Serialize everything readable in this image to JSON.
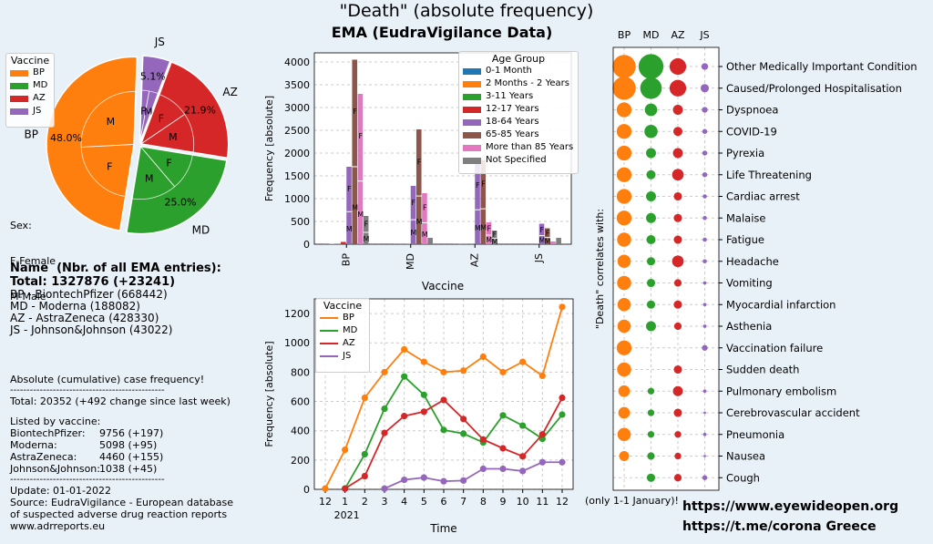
{
  "header": {
    "title": "\"Death\" (absolute frequency)",
    "subtitle": "EMA (EudraVigilance Data)"
  },
  "colors": {
    "BP": "#ff7f0e",
    "MD": "#2ca02c",
    "AZ": "#d62728",
    "JS": "#9467bd"
  },
  "pie": {
    "legend_title": "Vaccine",
    "legend": [
      "BP",
      "MD",
      "AZ",
      "JS"
    ],
    "outer": [
      {
        "label": "BP",
        "pct": "48.0%",
        "value": 48.0
      },
      {
        "label": "MD",
        "pct": "25.0%",
        "value": 25.0
      },
      {
        "label": "AZ",
        "pct": "21.9%",
        "value": 21.9
      },
      {
        "label": "JS",
        "pct": "5.1%",
        "value": 5.1
      }
    ],
    "inner_labels": {
      "F": "F",
      "M": "M"
    },
    "sex_note": [
      "Sex:",
      "F-Female",
      "M-Male"
    ]
  },
  "summary": {
    "heading": "Name  (Nbr. of all EMA entries):",
    "total": "Total: 1327876 (+23241)",
    "lines": [
      "BP - BiontechPfizer (668442)",
      "MD - Moderna (188082)",
      "AZ - AstraZeneca (428330)",
      "JS - Johnson&Johnson (43022)"
    ],
    "cumulative_title": "Absolute (cumulative) case frequency!",
    "separator": "-----------------------------------------------",
    "total_line": "Total: 20352 (+492 change since last week)",
    "listed_title": "Listed by vaccine:",
    "listed": [
      {
        "name": "BiontechPfizer:",
        "value": "9756 (+197)"
      },
      {
        "name": "Moderna:",
        "value": "5098 (+95)"
      },
      {
        "name": "AstraZeneca:",
        "value": "4460 (+155)"
      },
      {
        "name": "Johnson&Johnson:",
        "value": "1038 (+45)"
      }
    ],
    "update": "Update: 01-01-2022",
    "source1": "Source: EudraVigilance - European database",
    "source2": "of suspected adverse drug reaction reports",
    "source3": "www.adrreports.eu"
  },
  "chart_data": [
    {
      "type": "bar",
      "xlabel": "Vaccine",
      "ylabel": "Frequency [absolute]",
      "ylim": [
        0,
        4200
      ],
      "yticks": [
        0,
        500,
        1000,
        1500,
        2000,
        2500,
        3000,
        3500,
        4000
      ],
      "categories": [
        "BP",
        "MD",
        "AZ",
        "JS"
      ],
      "legend_title": "Age Group",
      "legend_position": "top-right",
      "grid": true,
      "series": [
        {
          "name": "0-1 Month",
          "color": "#1f77b4",
          "values": [
            5,
            2,
            3,
            1
          ]
        },
        {
          "name": "2 Months - 2 Years",
          "color": "#ff7f0e",
          "values": [
            10,
            3,
            5,
            1
          ]
        },
        {
          "name": "3-11 Years",
          "color": "#2ca02c",
          "values": [
            8,
            4,
            6,
            2
          ]
        },
        {
          "name": "12-17 Years",
          "color": "#d62728",
          "values": [
            50,
            10,
            8,
            5
          ]
        },
        {
          "name": "18-64 Years",
          "color": "#9467bd",
          "values": [
            1700,
            1280,
            1800,
            450
          ]
        },
        {
          "name": "65-85 Years",
          "color": "#8c564b",
          "values": [
            4050,
            2520,
            1850,
            350
          ]
        },
        {
          "name": "More than 85 Years",
          "color": "#e377c2",
          "values": [
            3300,
            1120,
            480,
            60
          ]
        },
        {
          "name": "Not Specified",
          "color": "#7f7f7f",
          "values": [
            620,
            140,
            300,
            140
          ]
        }
      ]
    },
    {
      "type": "line",
      "xlabel": "Time",
      "ylabel": "Frequency [absolute]",
      "ylim": [
        0,
        1300
      ],
      "yticks": [
        0,
        200,
        400,
        600,
        800,
        1000,
        1200
      ],
      "x_ticks": [
        "12",
        "1",
        "2",
        "3",
        "4",
        "5",
        "6",
        "7",
        "8",
        "9",
        "10",
        "11",
        "12"
      ],
      "x_year_label": "2021",
      "legend_title": "Vaccine",
      "legend_position": "top-left",
      "grid": true,
      "series": [
        {
          "name": "BP",
          "color": "#ff7f0e",
          "x_index": [
            0,
            1,
            2,
            3,
            4,
            5,
            6,
            7,
            8,
            9,
            10,
            11,
            12
          ],
          "values": [
            5,
            270,
            625,
            800,
            955,
            870,
            800,
            810,
            905,
            800,
            870,
            775,
            1245
          ]
        },
        {
          "name": "MD",
          "color": "#2ca02c",
          "x_index": [
            1,
            2,
            3,
            4,
            5,
            6,
            7,
            8,
            9,
            10,
            11,
            12
          ],
          "values": [
            5,
            240,
            550,
            770,
            645,
            405,
            380,
            320,
            505,
            435,
            345,
            510
          ]
        },
        {
          "name": "AZ",
          "color": "#d62728",
          "x_index": [
            1,
            2,
            3,
            4,
            5,
            6,
            7,
            8,
            9,
            10,
            11,
            12
          ],
          "values": [
            5,
            90,
            385,
            500,
            530,
            610,
            480,
            340,
            280,
            225,
            375,
            625
          ]
        },
        {
          "name": "JS",
          "color": "#9467bd",
          "x_index": [
            3,
            4,
            5,
            6,
            7,
            8,
            9,
            10,
            11,
            12
          ],
          "values": [
            5,
            65,
            80,
            55,
            60,
            140,
            140,
            125,
            185,
            185
          ]
        }
      ]
    },
    {
      "type": "scatter",
      "ylabel": "\"Death\" correlates with:",
      "columns": [
        "BP",
        "MD",
        "AZ",
        "JS"
      ],
      "footnote": "(only 1-1 January)!",
      "rows": [
        {
          "label": "Other Medically Important Condition",
          "values": [
            28,
            30,
            20,
            8
          ]
        },
        {
          "label": "Caused/Prolonged Hospitalisation",
          "values": [
            28,
            26,
            20,
            10
          ]
        },
        {
          "label": "Dyspnoea",
          "values": [
            18,
            15,
            12,
            7
          ]
        },
        {
          "label": "COVID-19",
          "values": [
            18,
            16,
            11,
            6
          ]
        },
        {
          "label": "Pyrexia",
          "values": [
            18,
            12,
            12,
            6
          ]
        },
        {
          "label": "Life Threatening",
          "values": [
            18,
            11,
            14,
            6
          ]
        },
        {
          "label": "Cardiac arrest",
          "values": [
            18,
            12,
            10,
            5
          ]
        },
        {
          "label": "Malaise",
          "values": [
            18,
            12,
            10,
            5
          ]
        },
        {
          "label": "Fatigue",
          "values": [
            17,
            11,
            10,
            5
          ]
        },
        {
          "label": "Headache",
          "values": [
            16,
            10,
            14,
            5
          ]
        },
        {
          "label": "Vomiting",
          "values": [
            17,
            10,
            9,
            4
          ]
        },
        {
          "label": "Myocardial infarction",
          "values": [
            16,
            10,
            10,
            4
          ]
        },
        {
          "label": "Asthenia",
          "values": [
            16,
            12,
            9,
            4
          ]
        },
        {
          "label": "Vaccination failure",
          "values": [
            18,
            0,
            0,
            7
          ]
        },
        {
          "label": "Sudden death",
          "values": [
            17,
            0,
            10,
            0
          ]
        },
        {
          "label": "Pulmonary embolism",
          "values": [
            14,
            8,
            12,
            4
          ]
        },
        {
          "label": "Cerebrovascular accident",
          "values": [
            14,
            8,
            10,
            3
          ]
        },
        {
          "label": "Pneumonia",
          "values": [
            16,
            8,
            8,
            4
          ]
        },
        {
          "label": "Nausea",
          "values": [
            12,
            9,
            8,
            3
          ]
        },
        {
          "label": "Cough",
          "values": [
            0,
            10,
            9,
            6
          ]
        }
      ]
    }
  ],
  "footer": {
    "url1": "https://www.eyewideopen.org",
    "url2": "https://t.me/corona  Greece"
  }
}
